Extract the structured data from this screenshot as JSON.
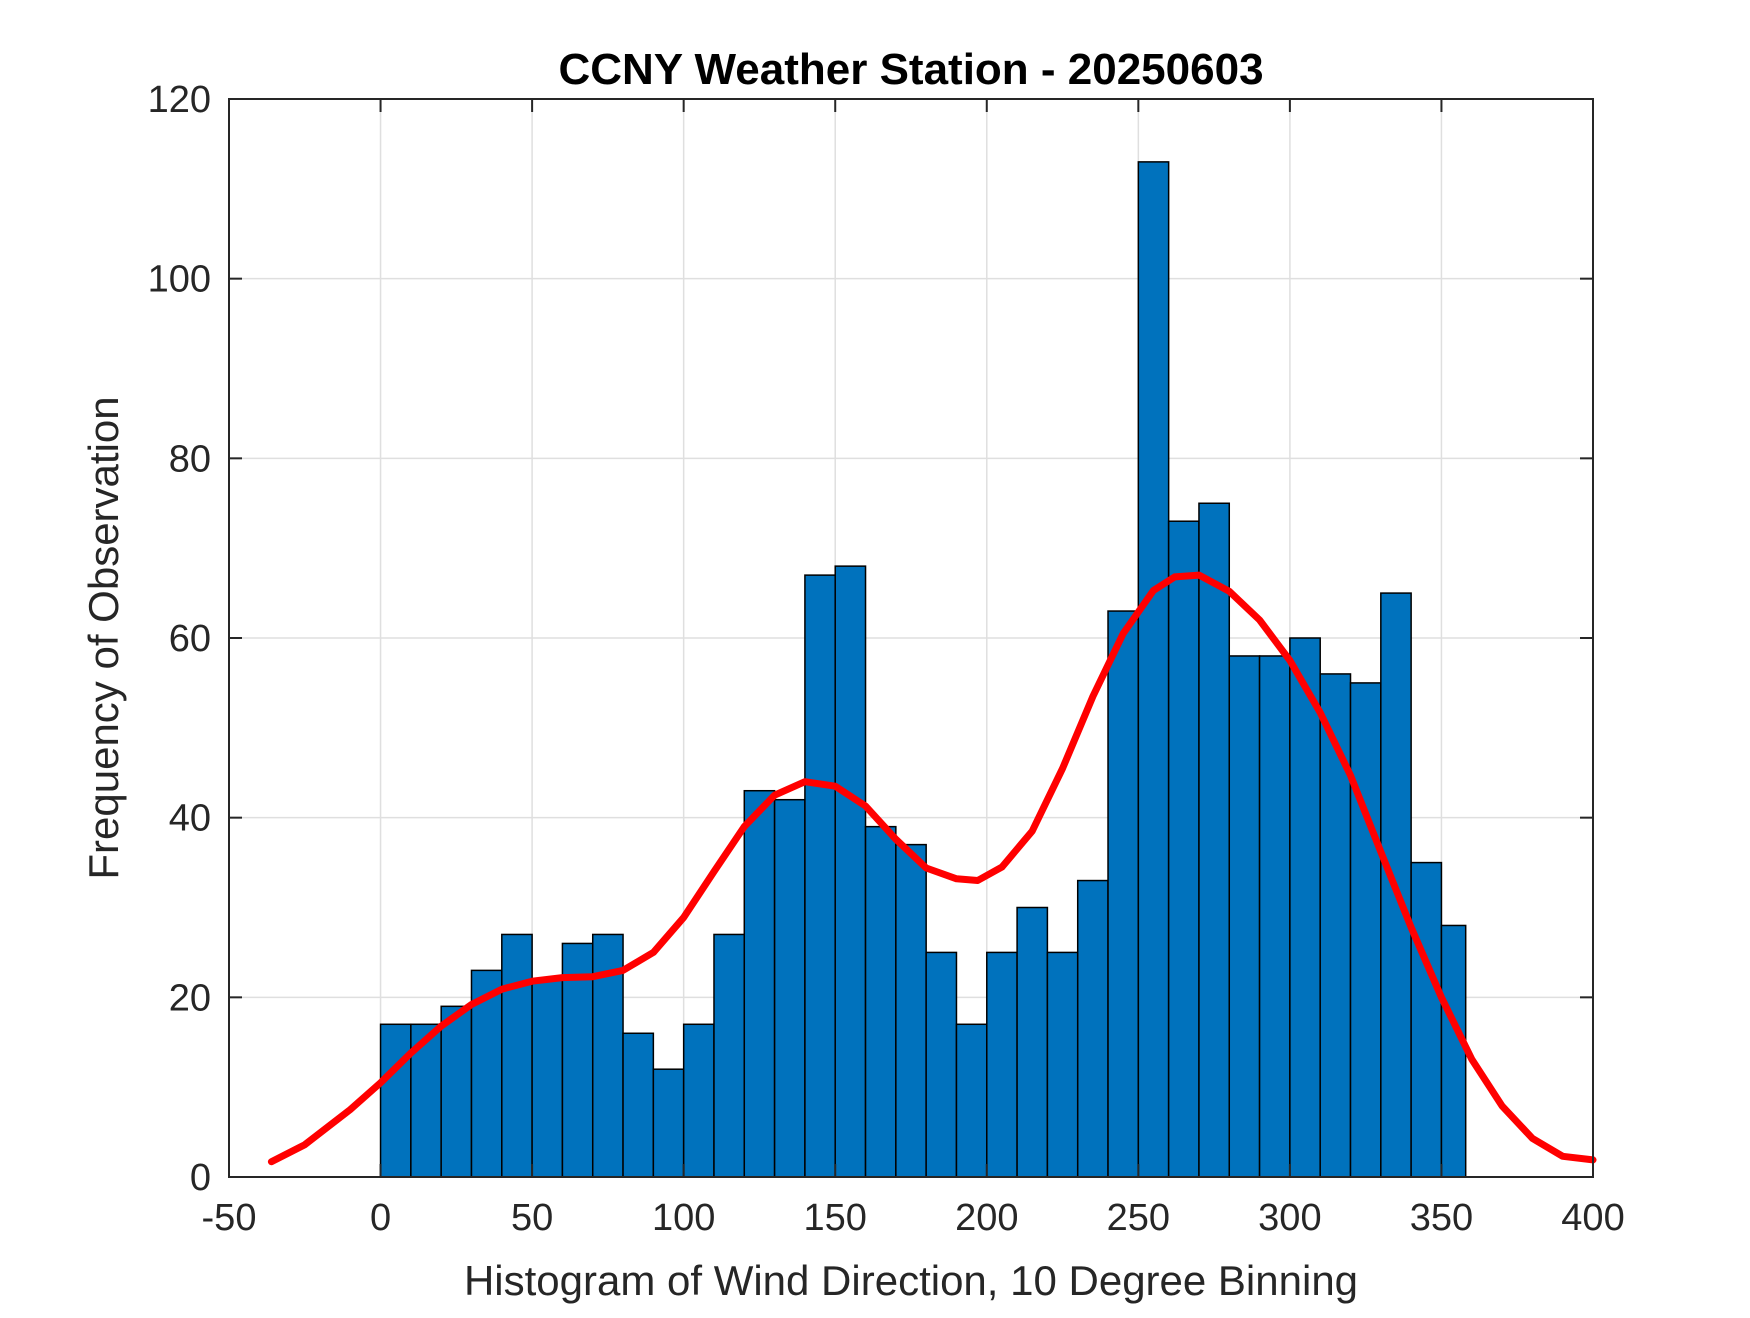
{
  "chart_data": {
    "type": "bar",
    "title": "CCNY Weather Station - 20250603",
    "xlabel": "Histogram of Wind Direction, 10 Degree Binning",
    "ylabel": "Frequency of Observation",
    "xlim": [
      -50,
      400
    ],
    "ylim": [
      0,
      120
    ],
    "xticks": [
      -50,
      0,
      50,
      100,
      150,
      200,
      250,
      300,
      350,
      400
    ],
    "yticks": [
      0,
      20,
      40,
      60,
      80,
      100,
      120
    ],
    "grid": true,
    "bin_width": 10,
    "bins": [
      {
        "x0": 0,
        "x1": 10,
        "value": 17
      },
      {
        "x0": 10,
        "x1": 20,
        "value": 17
      },
      {
        "x0": 20,
        "x1": 30,
        "value": 19
      },
      {
        "x0": 30,
        "x1": 40,
        "value": 23
      },
      {
        "x0": 40,
        "x1": 50,
        "value": 27
      },
      {
        "x0": 50,
        "x1": 60,
        "value": 22
      },
      {
        "x0": 60,
        "x1": 70,
        "value": 26
      },
      {
        "x0": 70,
        "x1": 80,
        "value": 27
      },
      {
        "x0": 80,
        "x1": 90,
        "value": 16
      },
      {
        "x0": 90,
        "x1": 100,
        "value": 12
      },
      {
        "x0": 100,
        "x1": 110,
        "value": 17
      },
      {
        "x0": 110,
        "x1": 120,
        "value": 27
      },
      {
        "x0": 120,
        "x1": 130,
        "value": 43
      },
      {
        "x0": 130,
        "x1": 140,
        "value": 42
      },
      {
        "x0": 140,
        "x1": 150,
        "value": 67
      },
      {
        "x0": 150,
        "x1": 160,
        "value": 68
      },
      {
        "x0": 160,
        "x1": 170,
        "value": 39
      },
      {
        "x0": 170,
        "x1": 180,
        "value": 37
      },
      {
        "x0": 180,
        "x1": 190,
        "value": 25
      },
      {
        "x0": 190,
        "x1": 200,
        "value": 17
      },
      {
        "x0": 200,
        "x1": 210,
        "value": 25
      },
      {
        "x0": 210,
        "x1": 220,
        "value": 30
      },
      {
        "x0": 220,
        "x1": 230,
        "value": 25
      },
      {
        "x0": 230,
        "x1": 240,
        "value": 33
      },
      {
        "x0": 240,
        "x1": 250,
        "value": 63
      },
      {
        "x0": 250,
        "x1": 260,
        "value": 113
      },
      {
        "x0": 260,
        "x1": 270,
        "value": 73
      },
      {
        "x0": 270,
        "x1": 280,
        "value": 75
      },
      {
        "x0": 280,
        "x1": 290,
        "value": 58
      },
      {
        "x0": 290,
        "x1": 300,
        "value": 58
      },
      {
        "x0": 300,
        "x1": 310,
        "value": 60
      },
      {
        "x0": 310,
        "x1": 320,
        "value": 56
      },
      {
        "x0": 320,
        "x1": 330,
        "value": 55
      },
      {
        "x0": 330,
        "x1": 340,
        "value": 65
      },
      {
        "x0": 340,
        "x1": 350,
        "value": 35
      },
      {
        "x0": 350,
        "x1": 358,
        "value": 28
      }
    ],
    "density_curve": {
      "x": [
        -36,
        -25,
        -10,
        0,
        10,
        20,
        30,
        40,
        50,
        60,
        70,
        80,
        90,
        100,
        110,
        120,
        130,
        140,
        150,
        160,
        170,
        180,
        190,
        197,
        205,
        215,
        225,
        235,
        245,
        255,
        262,
        270,
        280,
        290,
        300,
        310,
        320,
        330,
        340,
        350,
        360,
        370,
        380,
        390,
        400
      ],
      "y": [
        1.7,
        3.6,
        7.5,
        10.5,
        13.8,
        16.8,
        19.2,
        20.9,
        21.8,
        22.2,
        22.3,
        23.0,
        25.0,
        28.9,
        34.0,
        39.0,
        42.5,
        44.0,
        43.5,
        41.3,
        37.6,
        34.4,
        33.2,
        33.0,
        34.5,
        38.5,
        45.5,
        53.5,
        60.5,
        65.3,
        66.8,
        67.0,
        65.2,
        62.0,
        57.5,
        51.7,
        44.7,
        36.2,
        27.8,
        20.0,
        13.1,
        7.9,
        4.3,
        2.3,
        1.9
      ]
    },
    "colors": {
      "bar_fill": "#0072BD",
      "bar_edge": "#000000",
      "curve": "#FF0000",
      "grid": "#DFDFDF",
      "axes": "#262626"
    }
  }
}
